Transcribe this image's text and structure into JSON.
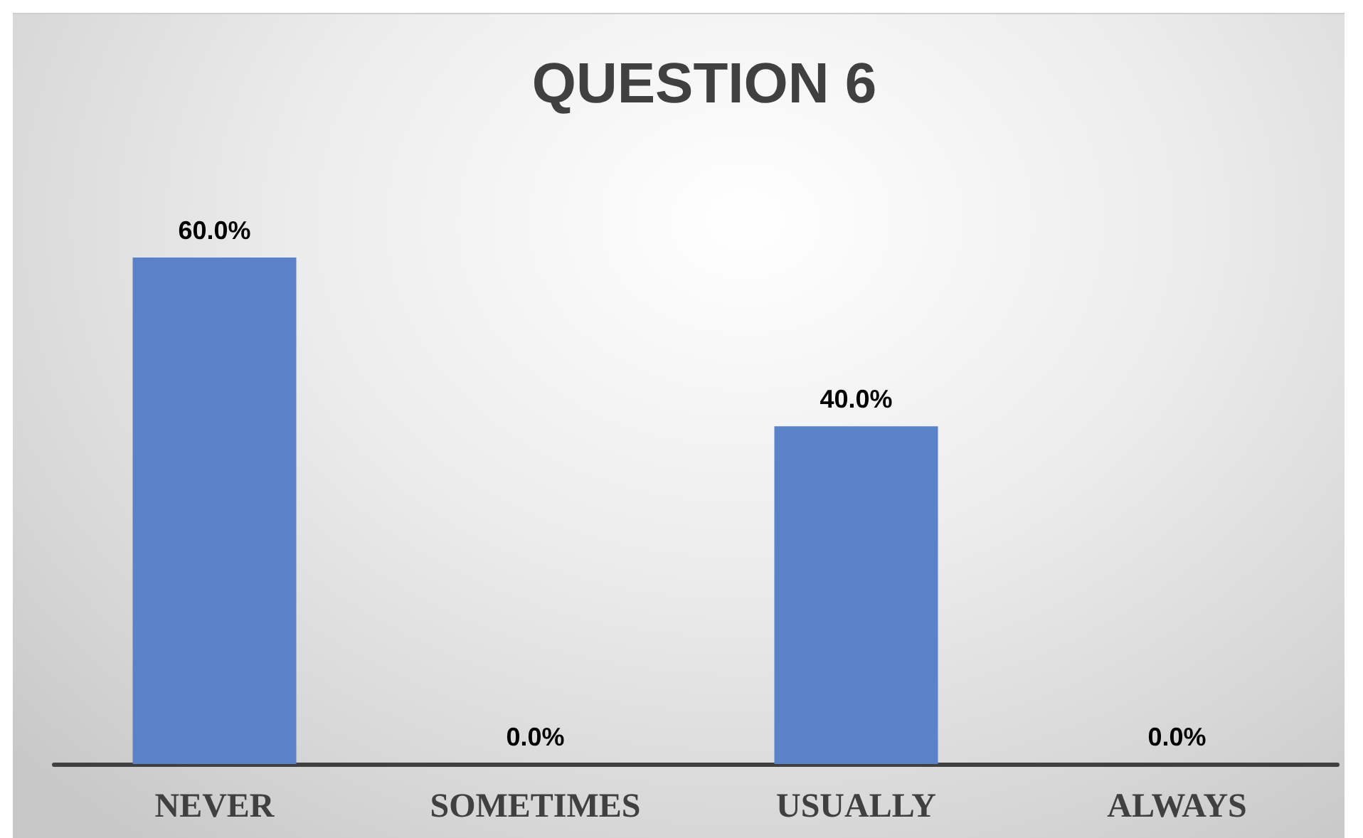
{
  "chart_data": {
    "type": "bar",
    "title": "QUESTION 6",
    "categories": [
      "NEVER",
      "SOMETIMES",
      "USUALLY",
      "ALWAYS"
    ],
    "values": [
      60,
      0,
      40,
      0
    ],
    "color": "#5b82c8",
    "value_labels": [
      "60.0%",
      "0.0%",
      "40.0%",
      "0.0%"
    ]
  }
}
